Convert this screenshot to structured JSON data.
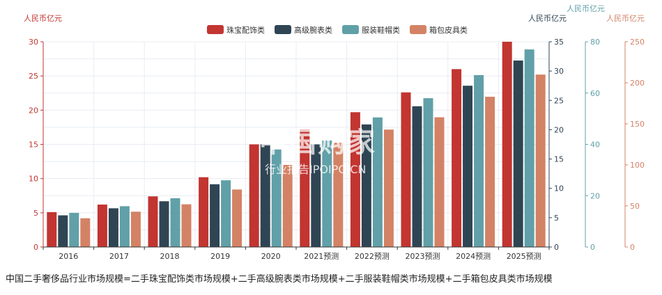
{
  "chart_data": {
    "type": "bar",
    "categories": [
      "2016",
      "2017",
      "2018",
      "2019",
      "2020",
      "2021预测",
      "2022预测",
      "2023预测",
      "2024预测",
      "2025预测"
    ],
    "series": [
      {
        "name": "珠宝配饰类",
        "axis": "y1",
        "color": "#c23531",
        "values": [
          5.1,
          6.2,
          7.4,
          10.2,
          15.0,
          17.2,
          19.7,
          22.6,
          26.0,
          30.0
        ]
      },
      {
        "name": "高级腕表类",
        "axis": "y2",
        "color": "#2f4554",
        "values": [
          5.4,
          6.6,
          7.8,
          10.7,
          17.5,
          17.5,
          20.9,
          24.0,
          27.5,
          31.8
        ]
      },
      {
        "name": "服装鞋帽类",
        "axis": "y3",
        "color": "#61a0a8",
        "values": [
          13.3,
          15.9,
          19.0,
          26.0,
          38.0,
          41.5,
          50.5,
          58.0,
          67.0,
          77.0
        ]
      },
      {
        "name": "箱包皮具类",
        "axis": "y4",
        "color": "#d48265",
        "values": [
          35,
          43,
          52,
          70,
          100,
          127,
          143,
          158,
          183,
          210
        ]
      }
    ],
    "axes": {
      "y1": {
        "title": "人民币亿元",
        "min": 0,
        "max": 30,
        "ticks": [
          0,
          5,
          10,
          15,
          20,
          25,
          30
        ],
        "color": "#c23531"
      },
      "y2": {
        "title": "人民币亿元",
        "min": 0,
        "max": 35,
        "ticks": [
          0,
          5,
          10,
          15,
          20,
          25,
          30,
          35
        ],
        "color": "#2f4554"
      },
      "y3": {
        "title": "人民币亿元",
        "min": 0,
        "max": 80,
        "ticks": [
          0,
          20,
          40,
          60,
          80
        ],
        "color": "#61a0a8"
      },
      "y4": {
        "title": "人民币亿元",
        "min": 0,
        "max": 250,
        "ticks": [
          0,
          50,
          100,
          150,
          200,
          250
        ],
        "color": "#d48265"
      }
    },
    "legend_position": "top-center",
    "grid": true
  },
  "caption": "中国二手奢侈品行业市场规模=二手珠宝配饰类市场规模+二手高级腕表类市场规模+二手服装鞋帽类市场规模+二手箱包皮具类市场规模",
  "watermark": {
    "cn": "中国购家",
    "en": "行业报告IPOIPO.CN"
  }
}
